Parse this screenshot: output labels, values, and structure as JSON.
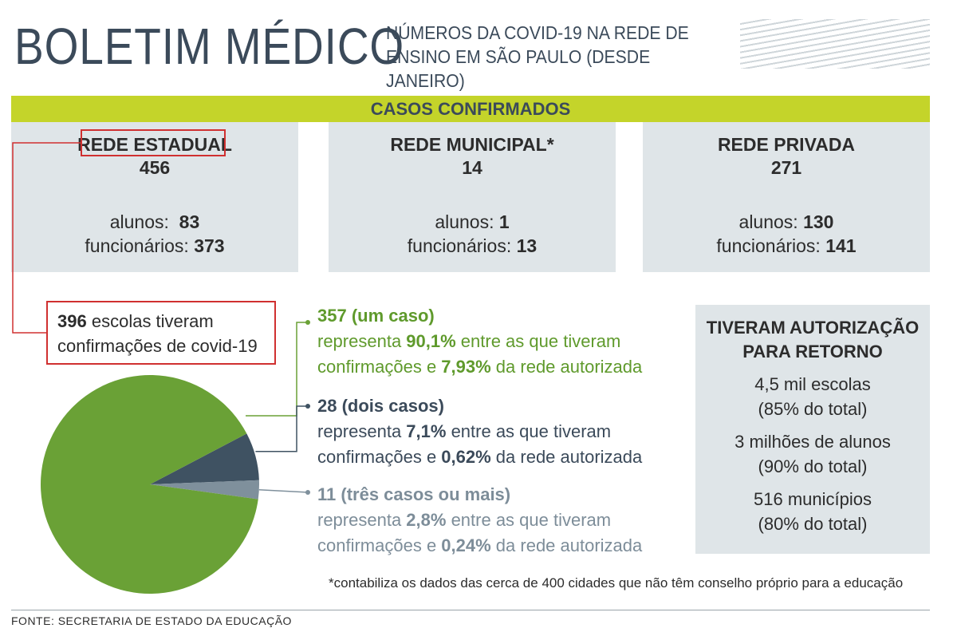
{
  "header": {
    "title": "BOLETIM MÉDICO",
    "subtitle_line1": "NÚMEROS DA COVID-19 NA REDE DE",
    "subtitle_line2": "ENSINO EM SÃO PAULO (DESDE JANEIRO)"
  },
  "band_label": "CASOS CONFIRMADOS",
  "networks": [
    {
      "name": "REDE ESTADUAL",
      "total": "456",
      "alunos_label": "alunos:",
      "alunos": "83",
      "funcionarios_label": "funcionários:",
      "funcionarios": "373"
    },
    {
      "name": "REDE MUNICIPAL*",
      "total": "14",
      "alunos_label": "alunos:",
      "alunos": "1",
      "funcionarios_label": "funcionários:",
      "funcionarios": "13"
    },
    {
      "name": "REDE PRIVADA",
      "total": "271",
      "alunos_label": "alunos:",
      "alunos": "130",
      "funcionarios_label": "funcionários:",
      "funcionarios": "141"
    }
  ],
  "escolas": {
    "count": "396",
    "text1": "escolas tiveram",
    "text2": "confirmações de covid-19"
  },
  "entries": [
    {
      "head": "357 (um caso)",
      "pre": "representa ",
      "pct1": "90,1%",
      "mid": " entre as que tiveram",
      "pre2": "confirmações e ",
      "pct2": "7,93%",
      "post": " da rede autorizada"
    },
    {
      "head": "28 (dois casos)",
      "pre": "representa ",
      "pct1": "7,1%",
      "mid": " entre as que tiveram",
      "pre2": "confirmações e ",
      "pct2": "0,62%",
      "post": " da rede autorizada"
    },
    {
      "head": "11 (três casos ou mais)",
      "pre": "representa ",
      "pct1": "2,8%",
      "mid": " entre as que tiveram",
      "pre2": "confirmações e ",
      "pct2": "0,24%",
      "post": " da rede autorizada"
    }
  ],
  "authorization": {
    "title1": "TIVERAM AUTORIZAÇÃO",
    "title2": "PARA RETORNO",
    "lines": [
      "4,5 mil escolas",
      "(85% do total)",
      "3 milhões de alunos",
      "(90% do total)",
      "516 municípios",
      "(80% do total)"
    ]
  },
  "footnote": "*contabiliza os dados das cerca de 400 cidades que não têm conselho próprio para a educação",
  "source": "FONTE: SECRETARIA DE ESTADO DA EDUCAÇÃO",
  "colors": {
    "green": "#6aa136",
    "dark": "#3f5262",
    "grey": "#7f909c",
    "band": "#c4d42a",
    "accent_red": "#d03030"
  },
  "chart_data": {
    "type": "pie",
    "slices": [
      {
        "label": "357 (um caso)",
        "value": 357,
        "color": "#6aa136"
      },
      {
        "label": "28 (dois casos)",
        "value": 28,
        "color": "#3f5262"
      },
      {
        "label": "11 (três casos ou mais)",
        "value": 11,
        "color": "#7f909c"
      }
    ]
  }
}
